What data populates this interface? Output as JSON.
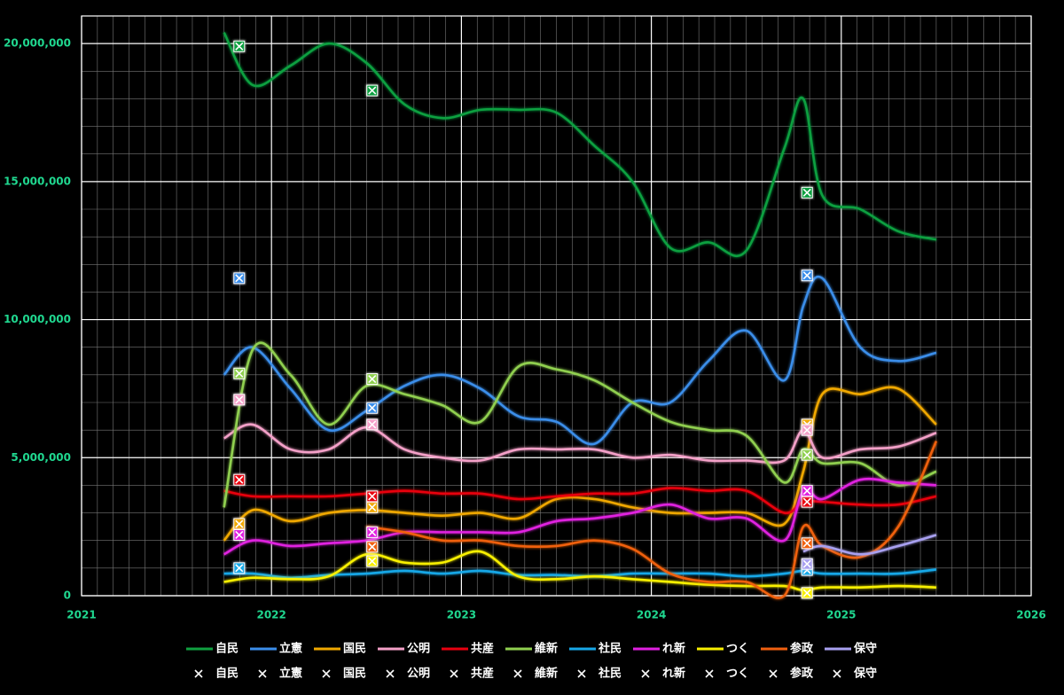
{
  "chart_data": {
    "type": "line",
    "xlim": [
      2021,
      2026
    ],
    "xticks": [
      2021,
      2022,
      2023,
      2024,
      2025,
      2026
    ],
    "ylim": [
      0,
      21000000
    ],
    "yticks": [
      0,
      {
        "value": 5000000,
        "label": "5,000,000"
      },
      {
        "value": 10000000,
        "label": "10,000,000"
      },
      {
        "value": 15000000,
        "label": "15,000,000"
      },
      {
        "value": 20000000,
        "label": "20,000,000"
      }
    ],
    "grid": true,
    "legend": "bottom",
    "x": [
      2021.75,
      2021.9,
      2022.1,
      2022.3,
      2022.5,
      2022.7,
      2022.9,
      2023.1,
      2023.3,
      2023.5,
      2023.7,
      2023.9,
      2024.1,
      2024.3,
      2024.5,
      2024.7,
      2024.8,
      2024.9,
      2025.1,
      2025.3,
      2025.5
    ],
    "series": [
      {
        "name": "自民",
        "color": "#10a040",
        "values": [
          20400000,
          18500000,
          19200000,
          20000000,
          19300000,
          17800000,
          17300000,
          17600000,
          17600000,
          17500000,
          16300000,
          15000000,
          12600000,
          12800000,
          12500000,
          16200000,
          18000000,
          14500000,
          14000000,
          13200000,
          12900000
        ]
      },
      {
        "name": "立憲",
        "color": "#3b8eea",
        "values": [
          8000000,
          9000000,
          7500000,
          6000000,
          6700000,
          7600000,
          8000000,
          7500000,
          6500000,
          6300000,
          5500000,
          7000000,
          7000000,
          8500000,
          9600000,
          7800000,
          10500000,
          11500000,
          9000000,
          8500000,
          8800000
        ]
      },
      {
        "name": "国民",
        "color": "#f0a800",
        "values": [
          2000000,
          3100000,
          2700000,
          3000000,
          3100000,
          3000000,
          2900000,
          3000000,
          2800000,
          3500000,
          3500000,
          3200000,
          3000000,
          3000000,
          3000000,
          2600000,
          4500000,
          7300000,
          7300000,
          7500000,
          6200000
        ]
      },
      {
        "name": "公明",
        "color": "#f4a0c8",
        "values": [
          5700000,
          6200000,
          5300000,
          5300000,
          6100000,
          5300000,
          5000000,
          4900000,
          5300000,
          5300000,
          5300000,
          5000000,
          5100000,
          4900000,
          4900000,
          4900000,
          6000000,
          5000000,
          5300000,
          5400000,
          5900000
        ]
      },
      {
        "name": "共産",
        "color": "#e80010",
        "values": [
          3800000,
          3600000,
          3600000,
          3600000,
          3700000,
          3800000,
          3700000,
          3700000,
          3500000,
          3600000,
          3700000,
          3700000,
          3900000,
          3800000,
          3800000,
          3000000,
          3400000,
          3400000,
          3300000,
          3300000,
          3600000
        ]
      },
      {
        "name": "維新",
        "color": "#90d050",
        "values": [
          3200000,
          8900000,
          8000000,
          6200000,
          7600000,
          7300000,
          6900000,
          6300000,
          8300000,
          8200000,
          7800000,
          7000000,
          6300000,
          6000000,
          5800000,
          4100000,
          5300000,
          4800000,
          4800000,
          4000000,
          4500000
        ]
      },
      {
        "name": "社民",
        "color": "#18a8e8",
        "values": [
          800000,
          800000,
          650000,
          750000,
          800000,
          900000,
          800000,
          900000,
          750000,
          750000,
          700000,
          800000,
          800000,
          800000,
          700000,
          800000,
          900000,
          800000,
          800000,
          800000,
          950000
        ]
      },
      {
        "name": "れ新",
        "color": "#e020e0",
        "values": [
          1500000,
          2000000,
          1800000,
          1900000,
          2000000,
          2300000,
          2300000,
          2300000,
          2300000,
          2700000,
          2800000,
          3000000,
          3300000,
          2800000,
          2800000,
          2000000,
          3800000,
          3500000,
          4200000,
          4100000,
          4000000
        ]
      },
      {
        "name": "つく",
        "color": "#f8f000",
        "values": [
          500000,
          650000,
          600000,
          700000,
          1500000,
          1200000,
          1200000,
          1600000,
          700000,
          600000,
          700000,
          600000,
          500000,
          400000,
          350000,
          350000,
          200000,
          300000,
          300000,
          350000,
          300000
        ]
      },
      {
        "name": "参政",
        "color": "#f06010",
        "values": [
          null,
          null,
          null,
          null,
          2500000,
          2300000,
          2000000,
          2000000,
          1800000,
          1800000,
          2000000,
          1700000,
          800000,
          500000,
          500000,
          0,
          2500000,
          1800000,
          1400000,
          2500000,
          5600000
        ]
      },
      {
        "name": "保守",
        "color": "#a8a0f0",
        "values": [
          null,
          null,
          null,
          null,
          null,
          null,
          null,
          null,
          null,
          null,
          null,
          null,
          null,
          null,
          null,
          null,
          1600000,
          1800000,
          1500000,
          1800000,
          2200000
        ]
      }
    ],
    "marker_x": [
      2021.83,
      2022.53,
      2024.82
    ],
    "marker_series": [
      {
        "name": "自民",
        "color": "#10a040",
        "values": [
          19900000,
          18300000,
          14600000
        ]
      },
      {
        "name": "立憲",
        "color": "#3b8eea",
        "values": [
          11500000,
          6800000,
          11600000
        ]
      },
      {
        "name": "国民",
        "color": "#f0a800",
        "values": [
          2600000,
          3200000,
          6200000
        ]
      },
      {
        "name": "公明",
        "color": "#f4a0c8",
        "values": [
          7100000,
          6200000,
          6000000
        ]
      },
      {
        "name": "共産",
        "color": "#e80010",
        "values": [
          4200000,
          3600000,
          3400000
        ]
      },
      {
        "name": "維新",
        "color": "#90d050",
        "values": [
          8050000,
          7850000,
          5100000
        ]
      },
      {
        "name": "社民",
        "color": "#18a8e8",
        "values": [
          1000000,
          null,
          930000
        ]
      },
      {
        "name": "れ新",
        "color": "#e020e0",
        "values": [
          2200000,
          2300000,
          3800000
        ]
      },
      {
        "name": "つく",
        "color": "#f8f000",
        "values": [
          null,
          1250000,
          100000
        ]
      },
      {
        "name": "参政",
        "color": "#f06010",
        "values": [
          null,
          1770000,
          1900000
        ]
      },
      {
        "name": "保守",
        "color": "#a8a0f0",
        "values": [
          null,
          null,
          1150000
        ]
      }
    ]
  }
}
